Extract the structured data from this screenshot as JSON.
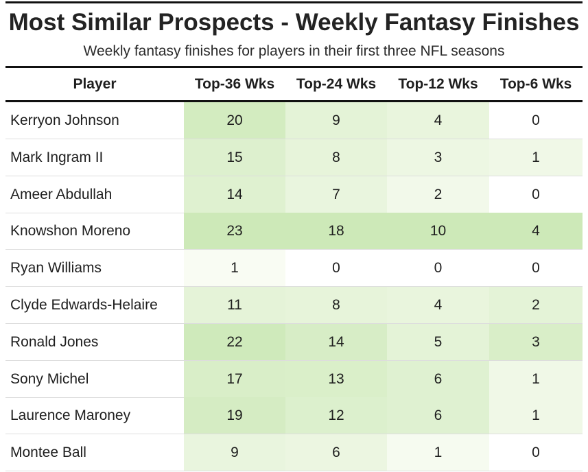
{
  "title": "Most Similar Prospects - Weekly Fantasy Finishes",
  "subtitle": "Weekly fantasy finishes for players in their first three NFL seasons",
  "columns": [
    "Player",
    "Top-36 Wks",
    "Top-24 Wks",
    "Top-12 Wks",
    "Top-6 Wks"
  ],
  "heat_colors": {
    "low": "#fbfdf6",
    "high": "#cde9b8"
  },
  "chart_data": {
    "type": "table",
    "title": "Most Similar Prospects - Weekly Fantasy Finishes",
    "subtitle": "Weekly fantasy finishes for players in their first three NFL seasons",
    "columns": [
      "Player",
      "Top-36 Wks",
      "Top-24 Wks",
      "Top-12 Wks",
      "Top-6 Wks"
    ],
    "rows": [
      {
        "player": "Kerryon Johnson",
        "values": [
          20,
          9,
          4,
          0
        ]
      },
      {
        "player": "Mark Ingram II",
        "values": [
          15,
          8,
          3,
          1
        ]
      },
      {
        "player": "Ameer Abdullah",
        "values": [
          14,
          7,
          2,
          0
        ]
      },
      {
        "player": "Knowshon Moreno",
        "values": [
          23,
          18,
          10,
          4
        ]
      },
      {
        "player": "Ryan Williams",
        "values": [
          1,
          0,
          0,
          0
        ]
      },
      {
        "player": "Clyde Edwards-Helaire",
        "values": [
          11,
          8,
          4,
          2
        ]
      },
      {
        "player": "Ronald Jones",
        "values": [
          22,
          14,
          5,
          3
        ]
      },
      {
        "player": "Sony Michel",
        "values": [
          17,
          13,
          6,
          1
        ]
      },
      {
        "player": "Laurence Maroney",
        "values": [
          19,
          12,
          6,
          1
        ]
      },
      {
        "player": "Montee Ball",
        "values": [
          9,
          6,
          1,
          0
        ]
      }
    ]
  }
}
